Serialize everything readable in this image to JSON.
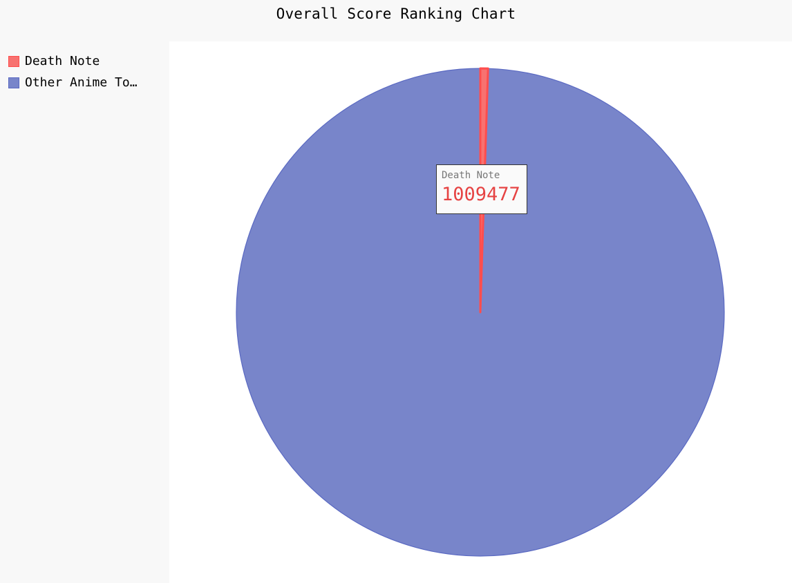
{
  "chart_data": {
    "type": "pie",
    "title": "Overall Score Ranking Chart",
    "slices": [
      {
        "label": "Death Note",
        "legend_label": "Death Note",
        "value": 1009477,
        "color": "#ff4d4d",
        "fill": "#f77270"
      },
      {
        "label": "Other Anime Total",
        "legend_label": "Other Anime To…",
        "value": 199000000,
        "color": "#5a69c2",
        "fill": "#7885ca"
      }
    ],
    "legend_placement": "top-left"
  },
  "tooltip": {
    "label": "Death Note",
    "value": "1009477"
  }
}
